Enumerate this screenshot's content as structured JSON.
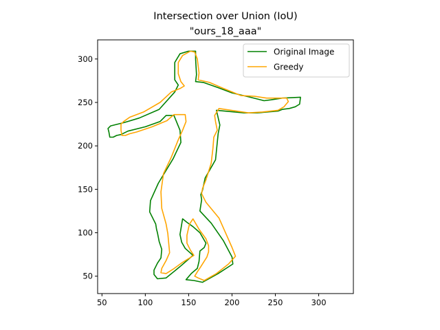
{
  "chart_data": {
    "type": "line",
    "title": "Intersection over Union (IoU)",
    "subtitle": "\"ours_18_aaa\"",
    "xlabel": "",
    "ylabel": "",
    "xlim": [
      45,
      340
    ],
    "ylim": [
      30,
      322
    ],
    "xticks": [
      50,
      100,
      150,
      200,
      250,
      300
    ],
    "yticks": [
      50,
      100,
      150,
      200,
      250,
      300
    ],
    "grid": false,
    "legend_position": "top-right",
    "series": [
      {
        "name": "Original Image",
        "color": "#008000",
        "points": [
          [
            150,
            309
          ],
          [
            140,
            306
          ],
          [
            134,
            296
          ],
          [
            134,
            276
          ],
          [
            138,
            270
          ],
          [
            134,
            262
          ],
          [
            116,
            242
          ],
          [
            93,
            232
          ],
          [
            76,
            227
          ],
          [
            60,
            223
          ],
          [
            57,
            220
          ],
          [
            58,
            216
          ],
          [
            59,
            210
          ],
          [
            63,
            210
          ],
          [
            67,
            212
          ],
          [
            72,
            213
          ],
          [
            80,
            217
          ],
          [
            100,
            222
          ],
          [
            117,
            228
          ],
          [
            124,
            235
          ],
          [
            133,
            235
          ],
          [
            140,
            218
          ],
          [
            141,
            204
          ],
          [
            132,
            185
          ],
          [
            115,
            157
          ],
          [
            106,
            137
          ],
          [
            105,
            124
          ],
          [
            112,
            110
          ],
          [
            113,
            104
          ],
          [
            114,
            100
          ],
          [
            116,
            90
          ],
          [
            119,
            81
          ],
          [
            118,
            71
          ],
          [
            114,
            65
          ],
          [
            110,
            57
          ],
          [
            110,
            52
          ],
          [
            114,
            47
          ],
          [
            124,
            48
          ],
          [
            140,
            61
          ],
          [
            155,
            74
          ],
          [
            146,
            82
          ],
          [
            142,
            89
          ],
          [
            140,
            98
          ],
          [
            143,
            116
          ],
          [
            148,
            112
          ],
          [
            155,
            107
          ],
          [
            163,
            100
          ],
          [
            170,
            88
          ],
          [
            168,
            83
          ],
          [
            163,
            79
          ],
          [
            162,
            67
          ],
          [
            160,
            59
          ],
          [
            153,
            53
          ],
          [
            147,
            46
          ],
          [
            156,
            45
          ],
          [
            166,
            43
          ],
          [
            184,
            53
          ],
          [
            201,
            64
          ],
          [
            200,
            72
          ],
          [
            190,
            91
          ],
          [
            176,
            111
          ],
          [
            163,
            125
          ],
          [
            165,
            138
          ],
          [
            164,
            144
          ],
          [
            166,
            149
          ],
          [
            169,
            163
          ],
          [
            177,
            177
          ],
          [
            181,
            184
          ],
          [
            184,
            214
          ],
          [
            186,
            224
          ],
          [
            182,
            241
          ],
          [
            214,
            238
          ],
          [
            229,
            238
          ],
          [
            253,
            240
          ],
          [
            258,
            242
          ],
          [
            266,
            243
          ],
          [
            273,
            245
          ],
          [
            278,
            248
          ],
          [
            279,
            256
          ],
          [
            258,
            255
          ],
          [
            245,
            253
          ],
          [
            237,
            252
          ],
          [
            221,
            256
          ],
          [
            200,
            261
          ],
          [
            184,
            267
          ],
          [
            167,
            273
          ],
          [
            158,
            274
          ],
          [
            159,
            282
          ],
          [
            158,
            300
          ],
          [
            158,
            309
          ],
          [
            150,
            309
          ]
        ]
      },
      {
        "name": "Greedy",
        "color": "#ffa500",
        "points": [
          [
            152,
            309
          ],
          [
            143,
            304
          ],
          [
            138,
            296
          ],
          [
            138,
            283
          ],
          [
            141,
            274
          ],
          [
            145,
            269
          ],
          [
            140,
            266
          ],
          [
            130,
            262
          ],
          [
            117,
            250
          ],
          [
            98,
            239
          ],
          [
            82,
            233
          ],
          [
            75,
            228
          ],
          [
            72,
            225
          ],
          [
            72,
            222
          ],
          [
            72,
            218
          ],
          [
            73,
            212
          ],
          [
            77,
            212
          ],
          [
            82,
            214
          ],
          [
            90,
            216
          ],
          [
            108,
            222
          ],
          [
            125,
            229
          ],
          [
            133,
            236
          ],
          [
            146,
            236
          ],
          [
            147,
            228
          ],
          [
            143,
            218
          ],
          [
            138,
            207
          ],
          [
            130,
            187
          ],
          [
            121,
            168
          ],
          [
            118,
            147
          ],
          [
            119,
            128
          ],
          [
            124,
            110
          ],
          [
            126,
            99
          ],
          [
            127,
            88
          ],
          [
            128,
            77
          ],
          [
            124,
            68
          ],
          [
            119,
            59
          ],
          [
            118,
            54
          ],
          [
            124,
            53
          ],
          [
            132,
            58
          ],
          [
            143,
            66
          ],
          [
            156,
            74
          ],
          [
            152,
            80
          ],
          [
            148,
            88
          ],
          [
            148,
            97
          ],
          [
            150,
            106
          ],
          [
            151,
            110
          ],
          [
            155,
            116
          ],
          [
            162,
            104
          ],
          [
            170,
            93
          ],
          [
            173,
            85
          ],
          [
            173,
            78
          ],
          [
            171,
            72
          ],
          [
            164,
            61
          ],
          [
            160,
            55
          ],
          [
            157,
            50
          ],
          [
            161,
            48
          ],
          [
            168,
            45
          ],
          [
            182,
            53
          ],
          [
            196,
            64
          ],
          [
            204,
            73
          ],
          [
            200,
            83
          ],
          [
            193,
            99
          ],
          [
            185,
            117
          ],
          [
            170,
            135
          ],
          [
            165,
            145
          ],
          [
            166,
            151
          ],
          [
            170,
            161
          ],
          [
            176,
            180
          ],
          [
            178,
            197
          ],
          [
            179,
            210
          ],
          [
            183,
            218
          ],
          [
            181,
            228
          ],
          [
            180,
            235
          ],
          [
            185,
            243
          ],
          [
            205,
            240
          ],
          [
            219,
            238
          ],
          [
            235,
            239
          ],
          [
            253,
            241
          ],
          [
            260,
            245
          ],
          [
            265,
            251
          ],
          [
            263,
            255
          ],
          [
            250,
            255
          ],
          [
            240,
            255
          ],
          [
            226,
            257
          ],
          [
            210,
            258
          ],
          [
            188,
            267
          ],
          [
            174,
            273
          ],
          [
            161,
            276
          ],
          [
            162,
            284
          ],
          [
            160,
            300
          ],
          [
            157,
            308
          ],
          [
            152,
            309
          ]
        ]
      }
    ]
  }
}
